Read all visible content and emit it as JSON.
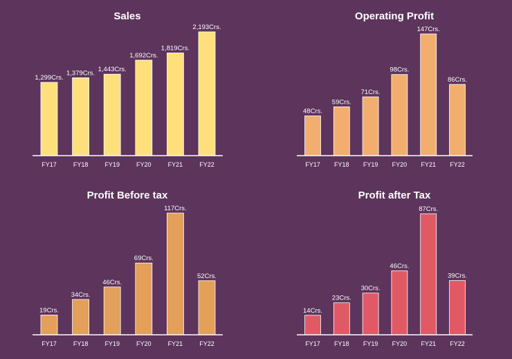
{
  "chart_data": [
    {
      "type": "bar",
      "title": "Sales",
      "categories": [
        "FY17",
        "FY18",
        "FY19",
        "FY20",
        "FY21",
        "FY22"
      ],
      "values": [
        1299,
        1379,
        1443,
        1692,
        1819,
        2193
      ],
      "data_labels": [
        "1,299Crs.",
        "1,379Crs.",
        "1,443Crs.",
        "1,692Crs.",
        "1,819Crs.",
        "2,193Crs."
      ],
      "color": "#fde07c",
      "ylim": [
        0,
        2193
      ],
      "grid": false,
      "legend": "none"
    },
    {
      "type": "bar",
      "title": "Operating Profit",
      "categories": [
        "FY17",
        "FY18",
        "FY19",
        "FY20",
        "FY21",
        "FY22"
      ],
      "values": [
        48,
        59,
        71,
        98,
        147,
        86
      ],
      "data_labels": [
        "48Crs.",
        "59Crs.",
        "71Crs.",
        "98Crs.",
        "147Crs.",
        "86Crs."
      ],
      "color": "#f2ae6e",
      "ylim": [
        0,
        147
      ],
      "grid": false,
      "legend": "none"
    },
    {
      "type": "bar",
      "title": "Profit Before tax",
      "categories": [
        "FY17",
        "FY18",
        "FY19",
        "FY20",
        "FY21",
        "FY22"
      ],
      "values": [
        19,
        34,
        46,
        69,
        117,
        52
      ],
      "data_labels": [
        "19Crs.",
        "34Crs.",
        "46Crs.",
        "69Crs.",
        "117Crs.",
        "52Crs."
      ],
      "color": "#e3a05a",
      "ylim": [
        0,
        117
      ],
      "grid": false,
      "legend": "none"
    },
    {
      "type": "bar",
      "title": "Profit after Tax",
      "categories": [
        "FY17",
        "FY18",
        "FY19",
        "FY20",
        "FY21",
        "FY22"
      ],
      "values": [
        14,
        23,
        30,
        46,
        87,
        39
      ],
      "data_labels": [
        "14Crs.",
        "23Crs.",
        "30Crs.",
        "46Crs.",
        "87Crs.",
        "39Crs."
      ],
      "color": "#e05a66",
      "ylim": [
        0,
        87
      ],
      "grid": false,
      "legend": "none"
    }
  ]
}
